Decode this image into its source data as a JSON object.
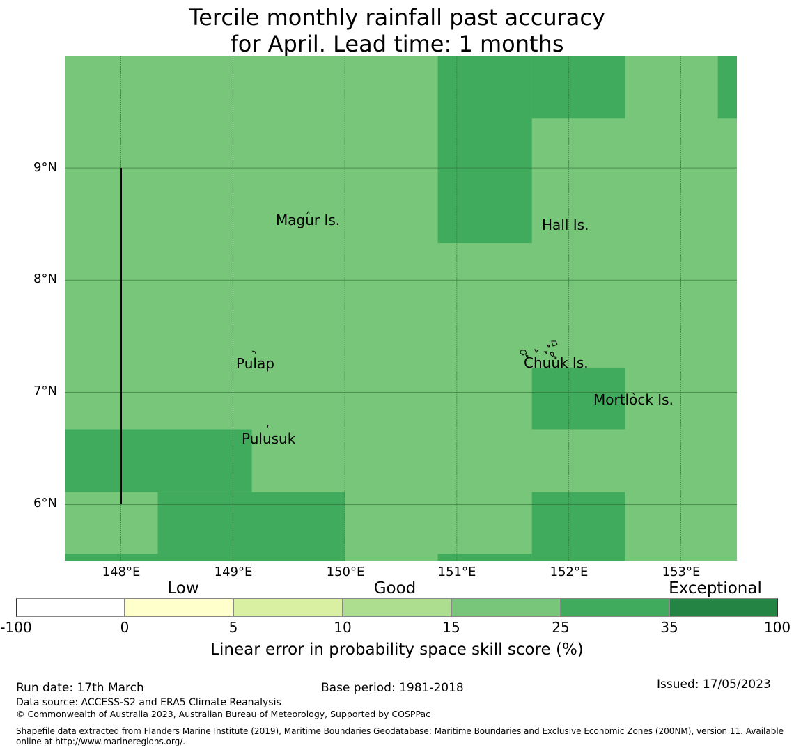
{
  "title": {
    "line1": "Tercile monthly rainfall past accuracy",
    "line2": "for April. Lead time: 1 months"
  },
  "map": {
    "lat_ticks": [
      "9°N",
      "8°N",
      "7°N",
      "6°N"
    ],
    "lon_ticks": [
      "148°E",
      "149°E",
      "150°E",
      "151°E",
      "152°E",
      "153°E"
    ],
    "islands": [
      "Magur Is.",
      "Hall Is.",
      "Pulap",
      "Chuuk Is.",
      "Mortlock Is.",
      "Pulusuk"
    ],
    "extent": {
      "lon_min": 147.5,
      "lon_max": 153.5,
      "lat_min": 5.5,
      "lat_max": 10.0
    },
    "cell_colors": {
      "good_15_25": "#78c679",
      "high_25_35": "#41ab5d"
    },
    "high_skill_cells": [
      {
        "lon": [
          150.83,
          151.67
        ],
        "lat": [
          8.33,
          10.0
        ]
      },
      {
        "lon": [
          151.67,
          152.5
        ],
        "lat": [
          9.44,
          10.0
        ]
      },
      {
        "lon": [
          153.33,
          153.5
        ],
        "lat": [
          9.44,
          10.0
        ]
      },
      {
        "lon": [
          151.67,
          152.5
        ],
        "lat": [
          6.67,
          7.22
        ]
      },
      {
        "lon": [
          147.5,
          149.17
        ],
        "lat": [
          6.11,
          6.67
        ]
      },
      {
        "lon": [
          148.33,
          150.0
        ],
        "lat": [
          5.5,
          6.11
        ]
      },
      {
        "lon": [
          147.5,
          148.33
        ],
        "lat": [
          5.5,
          5.56
        ]
      },
      {
        "lon": [
          151.67,
          152.5
        ],
        "lat": [
          5.5,
          6.11
        ]
      },
      {
        "lon": [
          150.83,
          151.67
        ],
        "lat": [
          5.5,
          5.56
        ]
      }
    ],
    "boundary_line": {
      "lon": 148.0,
      "lat": [
        6.0,
        9.0
      ]
    }
  },
  "legend": {
    "categories": [
      "Low",
      "Good",
      "Exceptional"
    ],
    "ticks": [
      "-100",
      "0",
      "5",
      "10",
      "15",
      "25",
      "35",
      "100"
    ],
    "colors": [
      "#ffffff",
      "#ffffcc",
      "#d9f0a3",
      "#addd8e",
      "#78c679",
      "#41ab5d",
      "#238443"
    ],
    "label": "Linear error in probability space skill score (%)"
  },
  "footer": {
    "run_date": "Run date: 17th March",
    "base_period": "Base period: 1981-2018",
    "issued": "Issued: 17/05/2023",
    "data_source": "Data source: ACCESS-S2 and ERA5 Climate Reanalysis",
    "copyright": "© Commonwealth of Australia 2023, Australian Bureau of Meteorology, Supported by COSPPac",
    "shapefile_line1": "Shapefile data extracted from Flanders Marine Institute (2019), Maritime Boundaries Geodatabase: Maritime Boundaries and Exclusive Economic Zones (200NM), version 11. Available",
    "shapefile_line2": "online at http://www.marineregions.org/."
  }
}
